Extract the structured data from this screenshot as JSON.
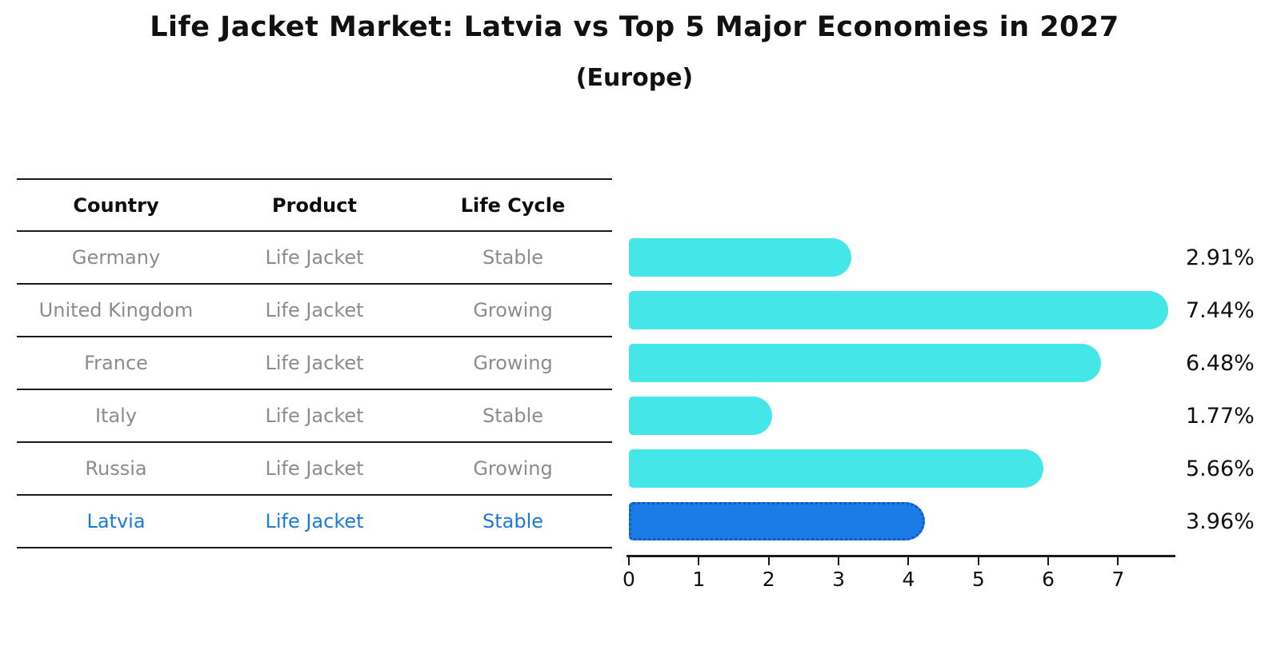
{
  "title": "Life Jacket Market: Latvia vs Top 5 Major Economies in 2027",
  "subtitle": "(Europe)",
  "table": {
    "headers": [
      "Country",
      "Product",
      "Life Cycle"
    ],
    "rows": [
      {
        "country": "Germany",
        "product": "Life Jacket",
        "life_cycle": "Stable",
        "highlight": false
      },
      {
        "country": "United Kingdom",
        "product": "Life Jacket",
        "life_cycle": "Growing",
        "highlight": false
      },
      {
        "country": "France",
        "product": "Life Jacket",
        "life_cycle": "Growing",
        "highlight": false
      },
      {
        "country": "Italy",
        "product": "Life Jacket",
        "life_cycle": "Stable",
        "highlight": false
      },
      {
        "country": "Russia",
        "product": "Life Jacket",
        "life_cycle": "Growing",
        "highlight": false
      },
      {
        "country": "Latvia",
        "product": "Life Jacket",
        "life_cycle": "Stable",
        "highlight": true
      }
    ]
  },
  "chart_data": {
    "type": "bar",
    "orientation": "horizontal",
    "title": "Life Jacket Market: Latvia vs Top 5 Major Economies in 2027",
    "subtitle": "(Europe)",
    "categories": [
      "Germany",
      "United Kingdom",
      "France",
      "Italy",
      "Russia",
      "Latvia"
    ],
    "values": [
      2.91,
      7.44,
      6.48,
      1.77,
      5.66,
      3.96
    ],
    "value_labels": [
      "2.91%",
      "7.44%",
      "6.48%",
      "1.77%",
      "5.66%",
      "3.96%"
    ],
    "xlabel": "",
    "ylabel": "",
    "xticks": [
      0,
      1,
      2,
      3,
      4,
      5,
      6,
      7
    ],
    "xlim": [
      0,
      7.83
    ],
    "grid": false,
    "legend": "none",
    "bar_color": "#45e6e8",
    "highlight_color": "#1b7ce8",
    "highlight_border_color": "#1258c2",
    "highlight_index": 5,
    "highlight_category": "Latvia"
  },
  "colors": {
    "background": "#ffffff",
    "text": "#111111",
    "table_text": "#8c8c8c",
    "table_header_text": "#0d0d0d",
    "highlight_text": "#1b79d8",
    "rule": "#1a1a1a"
  }
}
